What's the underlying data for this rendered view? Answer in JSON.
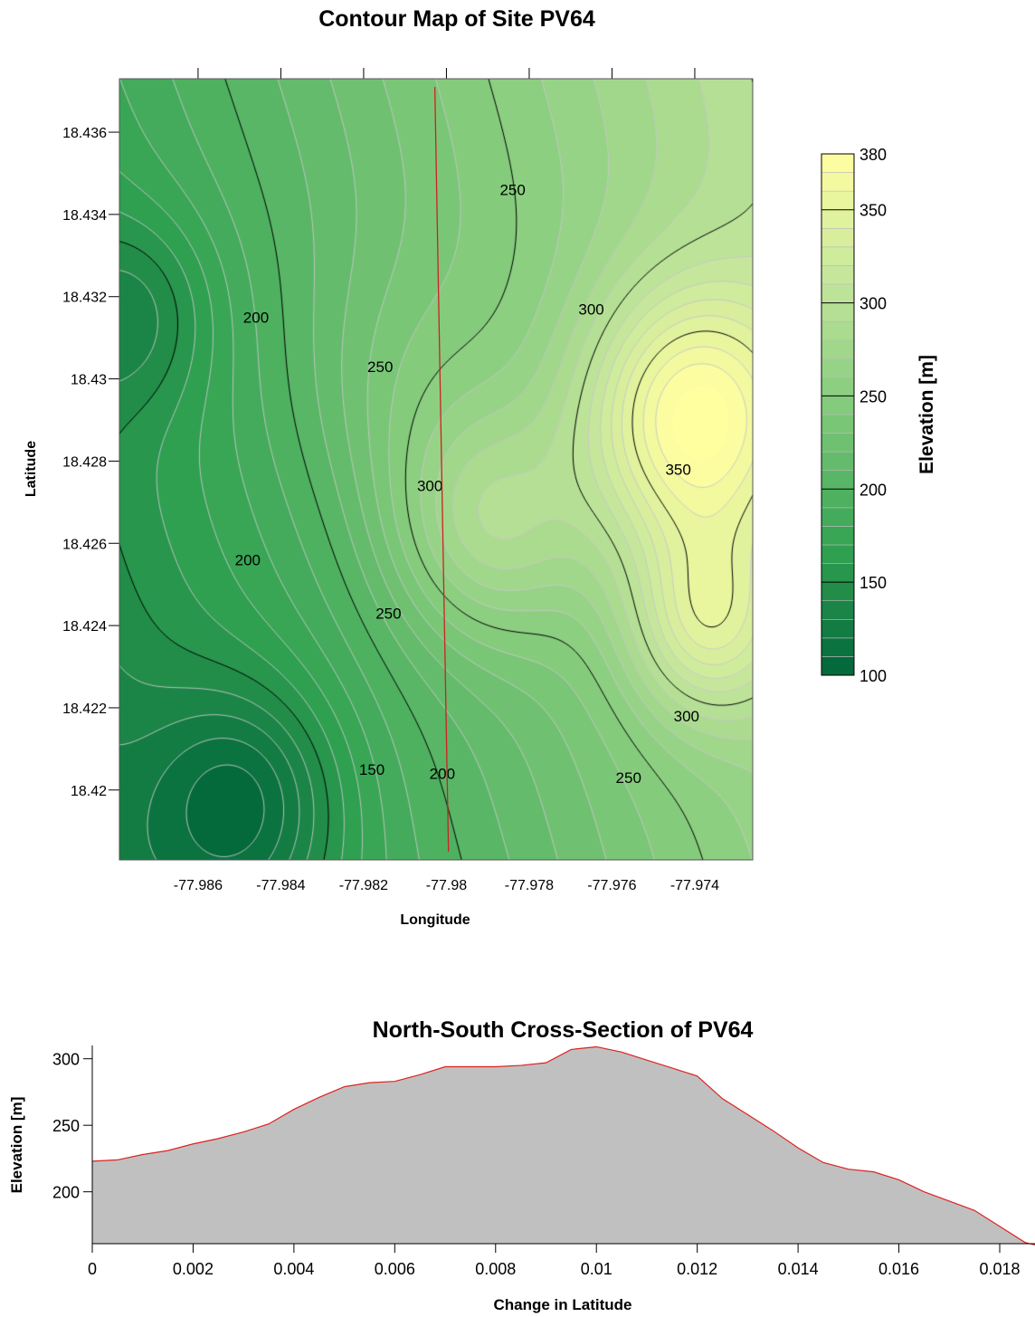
{
  "chart_data": [
    {
      "type": "heatmap",
      "title": "Contour Map of Site PV64",
      "xlabel": "Longitude",
      "ylabel": "Latitude",
      "xlim": [
        -77.9879,
        -77.9726
      ],
      "ylim": [
        18.4183,
        18.4373
      ],
      "xticks": [
        -77.986,
        -77.984,
        -77.982,
        -77.98,
        -77.978,
        -77.976,
        -77.974
      ],
      "xtick_labels": [
        "-77.986",
        "-77.984",
        "-77.982",
        "-77.98",
        "-77.978",
        "-77.976",
        "-77.974"
      ],
      "yticks": [
        18.436,
        18.434,
        18.432,
        18.43,
        18.428,
        18.426,
        18.424,
        18.422,
        18.42
      ],
      "ytick_labels": [
        "18.436",
        "18.434",
        "18.432",
        "18.43",
        "18.428",
        "18.426",
        "18.424",
        "18.422",
        "18.42"
      ],
      "colorbar": {
        "label": "Elevation [m]",
        "range": [
          100,
          380
        ],
        "step": 10,
        "ticks": [
          100,
          150,
          200,
          250,
          300,
          350,
          380
        ],
        "tick_labels": [
          "100",
          "150",
          "200",
          "250",
          "300",
          "350",
          "380"
        ],
        "colors": [
          "#00663a",
          "#33a352",
          "#7fc97a",
          "#c2e59b",
          "#ffffa0"
        ]
      },
      "contour_levels_major": [
        150,
        200,
        250,
        300,
        350
      ],
      "contour_labels": [
        {
          "text": "250",
          "lon": -77.9784,
          "lat": 18.4346
        },
        {
          "text": "300",
          "lon": -77.9765,
          "lat": 18.4317
        },
        {
          "text": "200",
          "lon": -77.9846,
          "lat": 18.4315
        },
        {
          "text": "250",
          "lon": -77.9816,
          "lat": 18.4303
        },
        {
          "text": "300",
          "lon": -77.9804,
          "lat": 18.4274
        },
        {
          "text": "350",
          "lon": -77.9744,
          "lat": 18.4278
        },
        {
          "text": "200",
          "lon": -77.9848,
          "lat": 18.4256
        },
        {
          "text": "250",
          "lon": -77.9814,
          "lat": 18.4243
        },
        {
          "text": "300",
          "lon": -77.9742,
          "lat": 18.4218
        },
        {
          "text": "150",
          "lon": -77.9818,
          "lat": 18.4205
        },
        {
          "text": "200",
          "lon": -77.9801,
          "lat": 18.4204
        },
        {
          "text": "250",
          "lon": -77.9756,
          "lat": 18.4203
        }
      ],
      "transect": {
        "color": "#cc2222",
        "start": [
          -77.98028,
          18.4371
        ],
        "end": [
          -77.97995,
          18.4185
        ]
      }
    },
    {
      "type": "area",
      "title": "North-South Cross-Section of PV64",
      "xlabel": "Change in Latitude",
      "ylabel": "Elevation [m]",
      "xlim": [
        0,
        0.0187
      ],
      "ylim": [
        161,
        310
      ],
      "xticks": [
        0,
        0.002,
        0.004,
        0.006,
        0.008,
        0.01,
        0.012,
        0.014,
        0.016,
        0.018
      ],
      "xtick_labels": [
        "0",
        "0.002",
        "0.004",
        "0.006",
        "0.008",
        "0.01",
        "0.012",
        "0.014",
        "0.016",
        "0.018"
      ],
      "yticks": [
        200,
        250,
        300
      ],
      "ytick_labels": [
        "200",
        "250",
        "300"
      ],
      "fill_color": "#c0c0c0",
      "line_color": "#dd2222",
      "x": [
        0,
        0.0005,
        0.001,
        0.0015,
        0.002,
        0.0025,
        0.003,
        0.0035,
        0.004,
        0.0045,
        0.005,
        0.0055,
        0.006,
        0.0065,
        0.007,
        0.0075,
        0.008,
        0.0085,
        0.009,
        0.0095,
        0.01,
        0.0105,
        0.011,
        0.0115,
        0.012,
        0.0125,
        0.013,
        0.0135,
        0.014,
        0.0145,
        0.015,
        0.0155,
        0.016,
        0.0165,
        0.017,
        0.0175,
        0.018,
        0.0185,
        0.0187
      ],
      "y": [
        223,
        224,
        228,
        231,
        236,
        240,
        245,
        251,
        262,
        271,
        279,
        282,
        283,
        288,
        294,
        294,
        294,
        295,
        297,
        307,
        309,
        305,
        299,
        293,
        287,
        270,
        258,
        246,
        233,
        222,
        217,
        215,
        209,
        200,
        193,
        186,
        174,
        162,
        160
      ]
    }
  ]
}
